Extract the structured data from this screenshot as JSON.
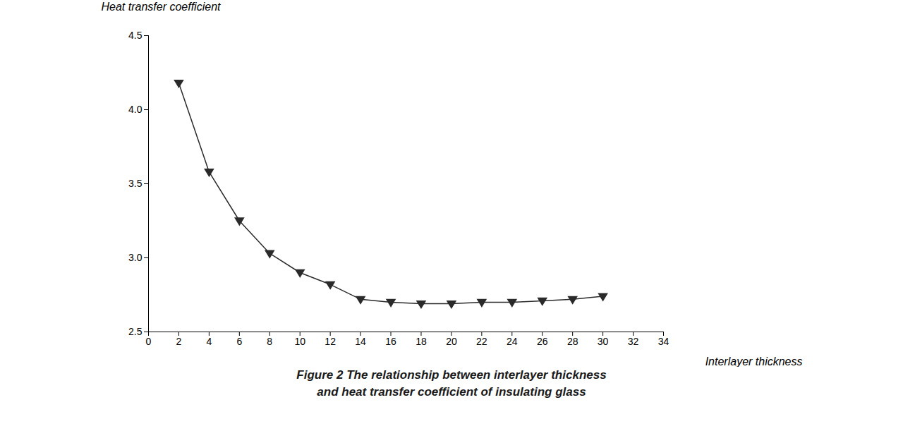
{
  "chart_data": {
    "type": "line",
    "x": [
      2,
      4,
      6,
      8,
      10,
      12,
      14,
      16,
      18,
      20,
      22,
      24,
      26,
      28,
      30
    ],
    "values": [
      4.18,
      3.58,
      3.25,
      3.03,
      2.9,
      2.82,
      2.72,
      2.7,
      2.69,
      2.69,
      2.7,
      2.7,
      2.71,
      2.72,
      2.74
    ],
    "xlim": [
      0,
      34
    ],
    "ylim": [
      2.5,
      4.5
    ],
    "xticks": [
      0,
      2,
      4,
      6,
      8,
      10,
      12,
      14,
      16,
      18,
      20,
      22,
      24,
      26,
      28,
      30,
      32,
      34
    ],
    "yticks": [
      2.5,
      {
        "value": 3.0,
        "label": "3.0"
      },
      3.5,
      {
        "value": 4.0,
        "label": "4.0"
      },
      4.5
    ],
    "x_label": "Interlayer thickness",
    "y_label": "Heat transfer coefficient",
    "caption": [
      "Figure 2 The relationship between interlayer thickness",
      "and heat transfer coefficient of insulating glass"
    ],
    "color": "#2a2a2a",
    "marker": "triangle_down",
    "grid": false
  }
}
